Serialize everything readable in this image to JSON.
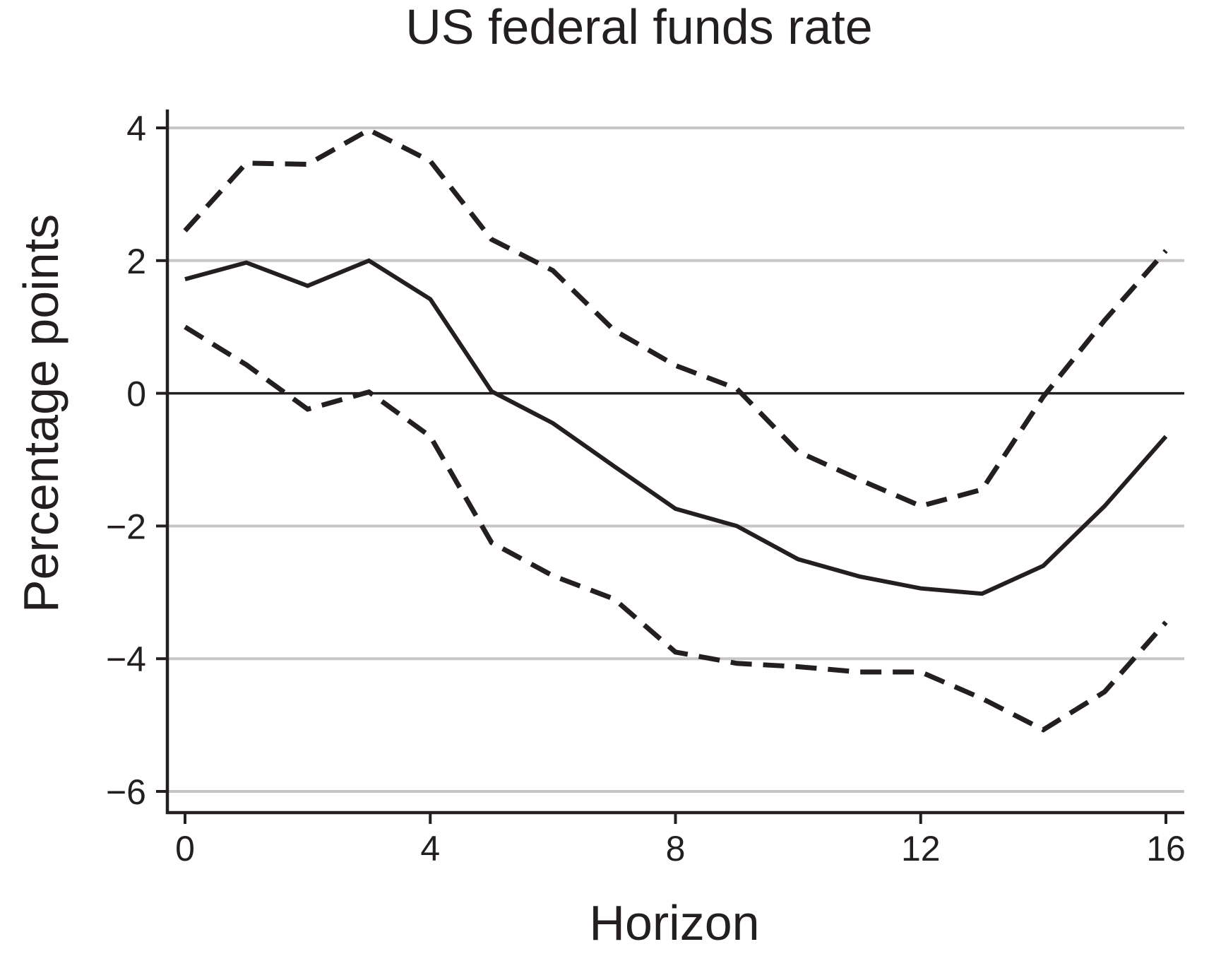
{
  "chart_data": {
    "type": "line",
    "title": "US federal funds rate",
    "xlabel": "Horizon",
    "ylabel": "Percentage points",
    "xlim": [
      0,
      16
    ],
    "ylim": [
      -6.3,
      4.5
    ],
    "x_ticks": [
      0,
      4,
      8,
      12,
      16
    ],
    "x_tick_labels": [
      "0",
      "4",
      "8",
      "12",
      "16"
    ],
    "y_ticks": [
      4,
      2,
      0,
      -2,
      -4,
      -6
    ],
    "y_tick_labels": [
      "4",
      "2",
      "0",
      "−2",
      "−4",
      "−6"
    ],
    "grid": true,
    "reference_line": 0,
    "x": [
      0,
      1,
      2,
      3,
      4,
      5,
      6,
      7,
      8,
      9,
      10,
      11,
      12,
      13,
      14,
      15,
      16
    ],
    "series": [
      {
        "style": "solid",
        "values": [
          1.72,
          1.97,
          1.62,
          2.0,
          1.42,
          0.03,
          -0.45,
          -1.1,
          -1.74,
          -2.0,
          -2.5,
          -2.76,
          -2.94,
          -3.02,
          -2.6,
          -1.7,
          -0.65
        ]
      },
      {
        "style": "dashed",
        "values": [
          2.45,
          3.47,
          3.45,
          3.97,
          3.5,
          2.32,
          1.85,
          0.95,
          0.42,
          0.07,
          -0.88,
          -1.3,
          -1.7,
          -1.45,
          -0.05,
          1.1,
          2.15
        ]
      },
      {
        "style": "dashed",
        "values": [
          1.0,
          0.43,
          -0.24,
          0.02,
          -0.65,
          -2.25,
          -2.75,
          -3.1,
          -3.9,
          -4.07,
          -4.12,
          -4.2,
          -4.2,
          -4.6,
          -5.07,
          -4.5,
          -3.45
        ]
      }
    ],
    "colors": {
      "line": "#231f20",
      "grid": "#c6c6c6",
      "axis": "#231f20"
    }
  }
}
